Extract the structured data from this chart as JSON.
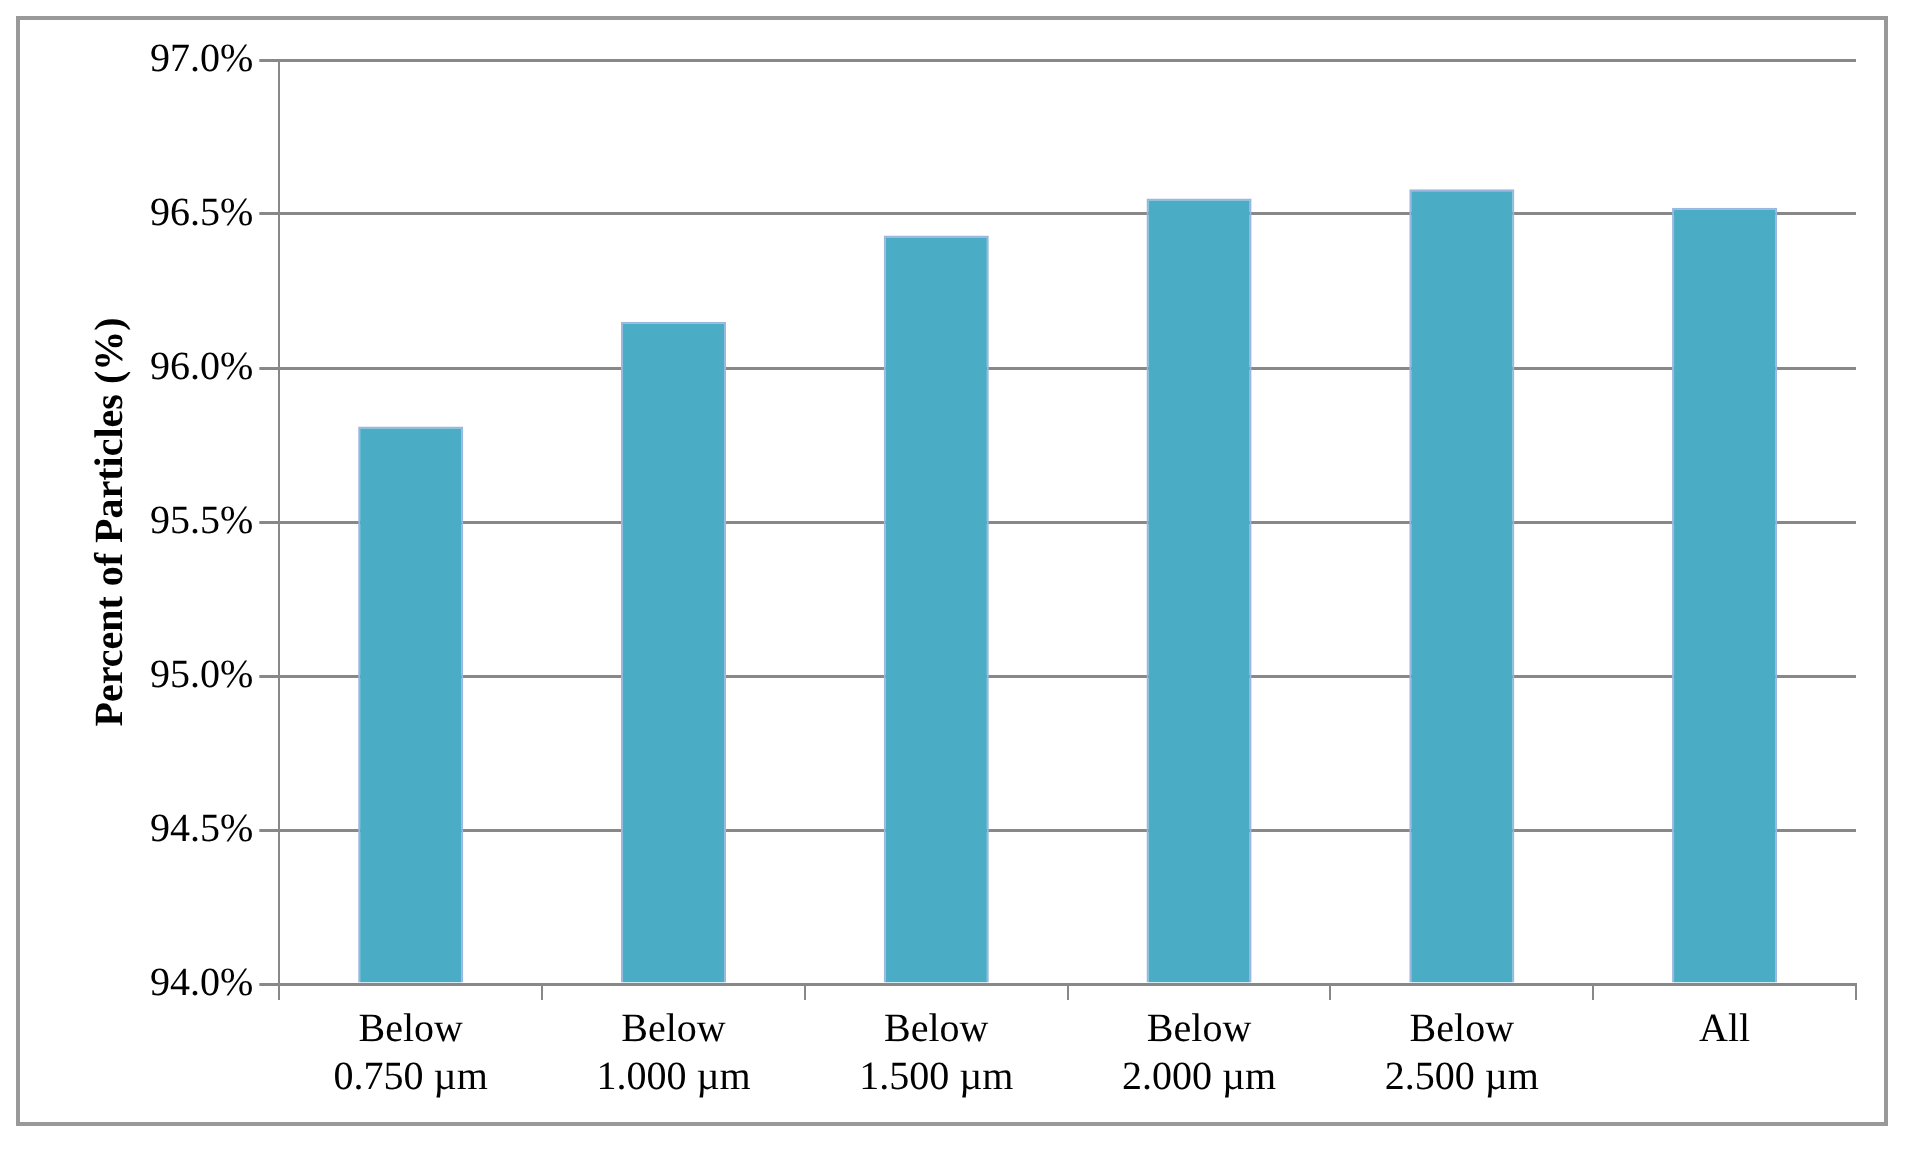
{
  "chart_data": {
    "type": "bar",
    "ylabel": "Percent of Particles (%)",
    "categories": [
      "Below 0.750 µm",
      "Below 1.000 µm",
      "Below 1.500 µm",
      "Below 2.000 µm",
      "Below 2.500 µm",
      "All"
    ],
    "values": [
      95.81,
      96.15,
      96.43,
      96.55,
      96.58,
      96.52
    ],
    "color": "#4bacc6",
    "ylim": [
      94,
      97
    ],
    "yticks": [
      {
        "value": 94,
        "label": "94.0%"
      },
      {
        "value": 94.5,
        "label": "94.5%"
      },
      {
        "value": 95,
        "label": "95.0%"
      },
      {
        "value": 95.5,
        "label": "95.5%"
      },
      {
        "value": 96,
        "label": "96.0%"
      },
      {
        "value": 96.5,
        "label": "96.5%"
      },
      {
        "value": 97,
        "label": "97.0%"
      }
    ],
    "grid": "y",
    "legend": false
  }
}
